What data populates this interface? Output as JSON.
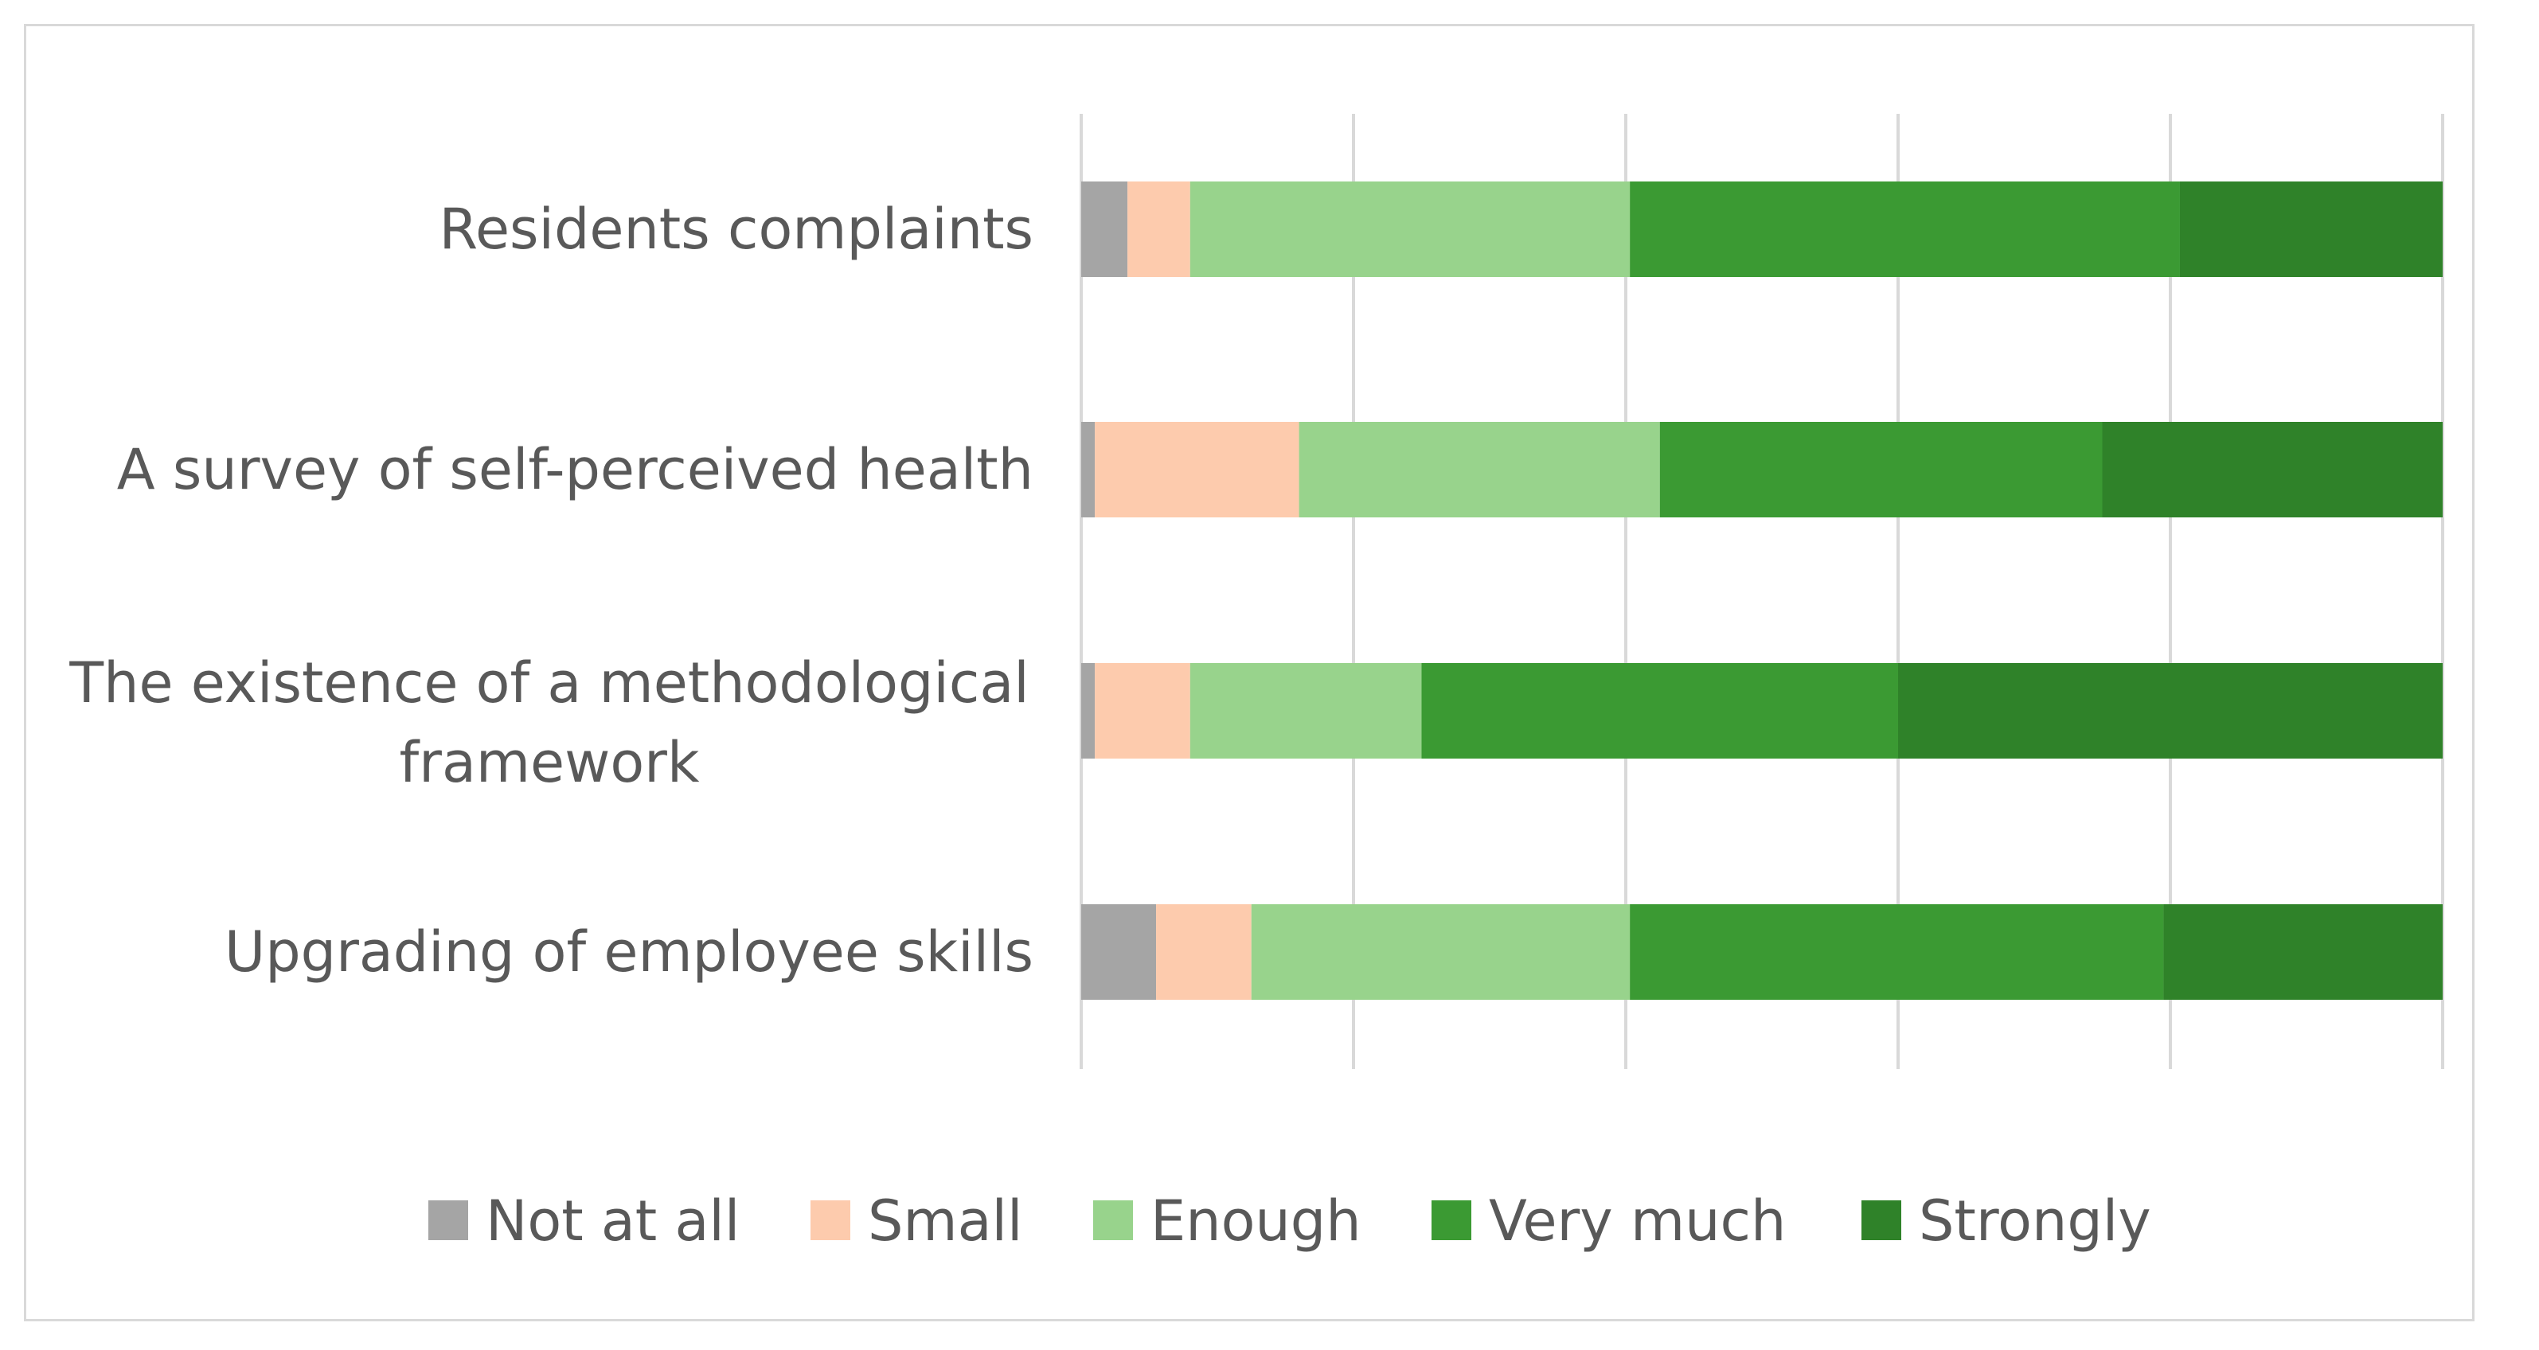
{
  "chart_data": {
    "type": "bar",
    "orientation": "horizontal",
    "stacked": true,
    "percent_stacked": true,
    "title": "",
    "xlabel": "",
    "ylabel": "",
    "xlim": [
      0,
      100
    ],
    "grid": true,
    "legend_position": "bottom",
    "categories": [
      "Residents complaints",
      "A survey of self-perceived health",
      "The existence of a methodological framework",
      "Upgrading of employee skills"
    ],
    "series": [
      {
        "name": "Not at all",
        "color": "#a5a5a5",
        "values": [
          3.4,
          1.0,
          1.0,
          5.5
        ]
      },
      {
        "name": "Small",
        "color": "#fdcbad",
        "values": [
          4.6,
          15.0,
          7.0,
          7.0
        ]
      },
      {
        "name": "Enough",
        "color": "#98d38c",
        "values": [
          32.3,
          26.5,
          17.0,
          27.8
        ]
      },
      {
        "name": "Very much",
        "color": "#3b9a33",
        "values": [
          40.4,
          32.5,
          35.0,
          39.2
        ]
      },
      {
        "name": "Strongly",
        "color": "#2f8229",
        "values": [
          19.3,
          25.0,
          40.0,
          20.5
        ]
      }
    ]
  }
}
